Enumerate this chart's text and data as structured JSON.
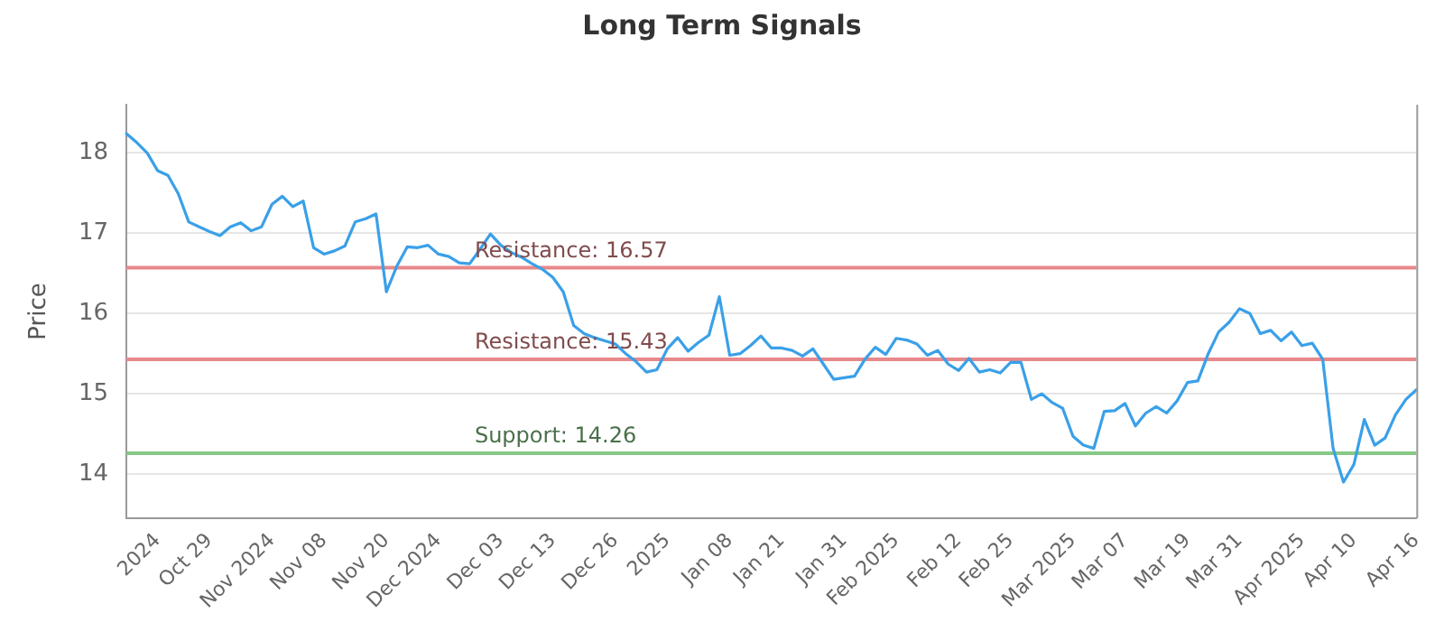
{
  "chart_data": {
    "type": "line",
    "title": "Long Term Signals",
    "ylabel": "Price",
    "categories": [
      null,
      null,
      null,
      "2024",
      null,
      null,
      null,
      null,
      "Oct 29",
      null,
      null,
      null,
      null,
      null,
      "Nov 2024",
      null,
      null,
      null,
      null,
      "Nov 08",
      null,
      null,
      null,
      null,
      null,
      "Nov 20",
      null,
      null,
      null,
      null,
      "Dec 2024",
      null,
      null,
      null,
      null,
      null,
      "Dec 03",
      null,
      null,
      null,
      null,
      "Dec 13",
      null,
      null,
      null,
      null,
      null,
      "Dec 26",
      null,
      null,
      null,
      null,
      "2025",
      null,
      null,
      null,
      null,
      null,
      "Jan 08",
      null,
      null,
      null,
      null,
      "Jan 21",
      null,
      null,
      null,
      null,
      null,
      "Jan 31",
      null,
      null,
      null,
      null,
      "Feb 2025",
      null,
      null,
      null,
      null,
      null,
      "Feb 12",
      null,
      null,
      null,
      null,
      "Feb 25",
      null,
      null,
      null,
      null,
      null,
      "Mar 2025",
      null,
      null,
      null,
      null,
      "Mar 07",
      null,
      null,
      null,
      null,
      null,
      "Mar 19",
      null,
      null,
      null,
      null,
      "Mar 31",
      null,
      null,
      null,
      null,
      null,
      "Apr 2025",
      null,
      null,
      null,
      null,
      "Apr 10",
      null,
      null,
      null,
      null,
      null,
      "Apr 16"
    ],
    "series": [
      {
        "color": "#3aa0e8",
        "values": [
          18.24,
          18.13,
          18.0,
          17.78,
          17.72,
          17.49,
          17.14,
          17.08,
          17.02,
          16.97,
          17.08,
          17.13,
          17.03,
          17.08,
          17.36,
          17.46,
          17.33,
          17.4,
          16.82,
          16.74,
          16.78,
          16.84,
          17.14,
          17.18,
          17.24,
          16.27,
          16.59,
          16.83,
          16.82,
          16.85,
          16.74,
          16.71,
          16.63,
          16.62,
          16.8,
          16.99,
          16.85,
          16.76,
          16.7,
          16.62,
          16.55,
          16.45,
          16.27,
          15.85,
          15.75,
          15.7,
          15.66,
          15.62,
          15.5,
          15.4,
          15.27,
          15.3,
          15.56,
          15.7,
          15.53,
          15.64,
          15.73,
          16.21,
          15.48,
          15.5,
          15.6,
          15.72,
          15.57,
          15.57,
          15.54,
          15.47,
          15.56,
          15.37,
          15.18,
          15.2,
          15.22,
          15.43,
          15.58,
          15.49,
          15.69,
          15.67,
          15.62,
          15.48,
          15.54,
          15.37,
          15.29,
          15.44,
          15.27,
          15.3,
          15.26,
          15.39,
          15.39,
          14.93,
          15.0,
          14.89,
          14.82,
          14.47,
          14.36,
          14.32,
          14.78,
          14.79,
          14.88,
          14.6,
          14.76,
          14.84,
          14.76,
          14.91,
          15.14,
          15.16,
          15.5,
          15.77,
          15.89,
          16.06,
          16.0,
          15.75,
          15.79,
          15.66,
          15.77,
          15.6,
          15.63,
          15.43,
          14.32,
          13.9,
          14.12,
          14.68,
          14.36,
          14.45,
          14.74,
          14.93,
          15.05
        ]
      }
    ],
    "ylim": [
      13.45,
      18.6
    ],
    "yticks": [
      14,
      15,
      16,
      17,
      18
    ],
    "grid": "y",
    "marker": "none",
    "line_style": "solid",
    "ref_lines": [
      {
        "axis": "y",
        "value": 16.57,
        "label": "Resistance: 16.57",
        "color": "#e8888a"
      },
      {
        "axis": "y",
        "value": 15.43,
        "label": "Resistance: 15.43",
        "color": "#e8888a"
      },
      {
        "axis": "y",
        "value": 14.26,
        "label": "Support: 14.26",
        "color": "#86c986"
      }
    ]
  }
}
